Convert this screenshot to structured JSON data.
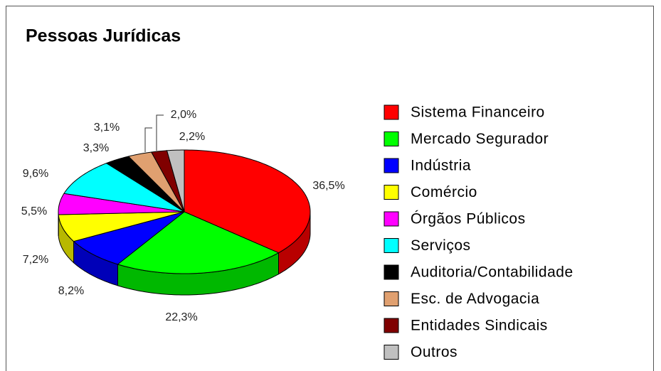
{
  "chart_data": {
    "type": "pie",
    "title": "Pessoas Jurídicas",
    "categories": [
      "Sistema Financeiro",
      "Mercado Segurador",
      "Indústria",
      "Comércio",
      "Órgãos Públicos",
      "Serviços",
      "Auditoria/Contabilidade",
      "Esc. de Advogacia",
      "Entidades Sindicais",
      "Outros"
    ],
    "values": [
      36.5,
      22.3,
      8.2,
      7.2,
      5.5,
      9.6,
      3.3,
      3.1,
      2.0,
      2.2
    ],
    "value_labels": [
      "36,5%",
      "22,3%",
      "8,2%",
      "7,2%",
      "5,5%",
      "9,6%",
      "3,3%",
      "3,1%",
      "2,0%",
      "2,2%"
    ],
    "colors": [
      "#ff0000",
      "#00ff00",
      "#0000ff",
      "#ffff00",
      "#ff00ff",
      "#00ffff",
      "#000000",
      "#e0a070",
      "#800000",
      "#c0c0c0"
    ],
    "legend": "right"
  }
}
